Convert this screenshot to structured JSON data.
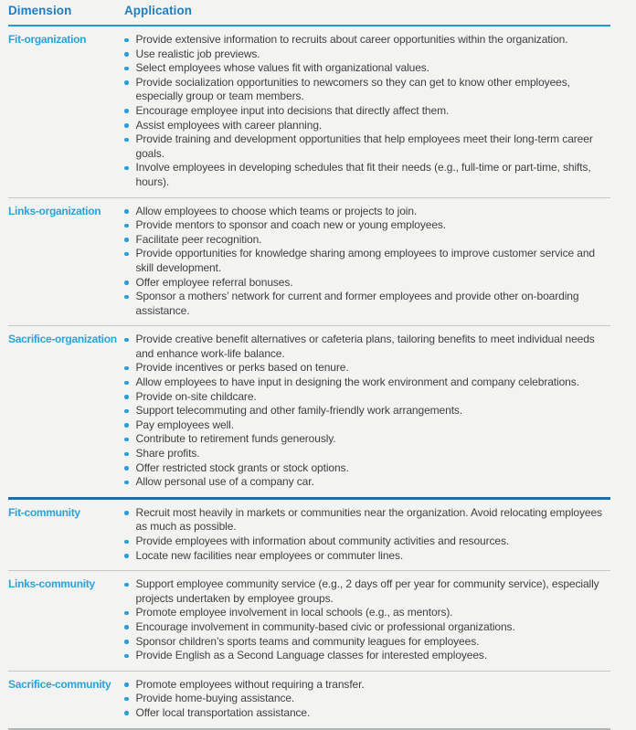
{
  "colors": {
    "background": "#f3f4f2",
    "header_text_blue": "#1d7fc2",
    "dimension_label_blue": "#2aa3d9",
    "bullet_blue": "#2b9ed5",
    "header_rule_blue": "#1e99d6",
    "section_rule_blue": "#1b6ead",
    "row_divider_gray": "#c7c9c8",
    "bottom_rule_gray": "#b2b6b5",
    "body_text": "#3f4040"
  },
  "table": {
    "columns": [
      "Dimension",
      "Application"
    ],
    "rows": [
      {
        "dimension": "Fit-organization",
        "section_break": false,
        "applications": [
          "Provide extensive information to recruits about career opportunities within the organization.",
          "Use realistic job previews.",
          "Select employees whose values fit with organizational values.",
          "Provide socialization opportunities to newcomers so they can get to know other employees, especially group or team members.",
          "Encourage employee input into decisions that directly affect them.",
          "Assist employees with career planning.",
          "Provide training and development opportunities that help employees meet their long-term career goals.",
          "Involve employees in developing schedules that fit their needs (e.g., full-time or part-time, shifts, hours)."
        ]
      },
      {
        "dimension": "Links-organization",
        "section_break": false,
        "applications": [
          "Allow employees to choose which teams or projects to join.",
          "Provide mentors to sponsor and coach new or young employees.",
          "Facilitate peer recognition.",
          "Provide opportunities for knowledge sharing among employees to improve customer service and skill development.",
          "Offer employee referral bonuses.",
          "Sponsor a mothers’ network for current and former employees and provide other on-boarding assistance."
        ]
      },
      {
        "dimension": "Sacrifice-organization",
        "section_break": false,
        "applications": [
          "Provide creative benefit alternatives or cafeteria plans, tailoring benefits to meet individual needs and enhance work-life balance.",
          "Provide incentives or perks based on tenure.",
          "Allow employees to have input in designing the work environment and company celebrations.",
          "Provide on-site childcare.",
          "Support telecommuting and other family-friendly work arrangements.",
          "Pay employees well.",
          "Contribute to retirement funds generously.",
          "Share profits.",
          "Offer restricted stock grants or stock options.",
          "Allow personal use of a company car."
        ]
      },
      {
        "dimension": "Fit-community",
        "section_break": true,
        "applications": [
          "Recruit most heavily in markets or communities near the organization. Avoid relocating employees as much as possible.",
          "Provide employees with information about community activities and resources.",
          "Locate new facilities near employees or commuter lines."
        ]
      },
      {
        "dimension": "Links-community",
        "section_break": false,
        "applications": [
          "Support employee community service (e.g., 2 days off per year for community service), especially projects undertaken by employee groups.",
          "Promote employee involvement in local schools (e.g., as mentors).",
          "Encourage involvement in community-based civic or professional organizations.",
          "Sponsor children’s sports teams and community leagues for employees.",
          "Provide English as a Second Language classes for interested employees."
        ]
      },
      {
        "dimension": "Sacrifice-community",
        "section_break": false,
        "applications": [
          "Promote employees without requiring a transfer.",
          "Provide home-buying assistance.",
          "Offer local transportation assistance."
        ]
      }
    ]
  }
}
